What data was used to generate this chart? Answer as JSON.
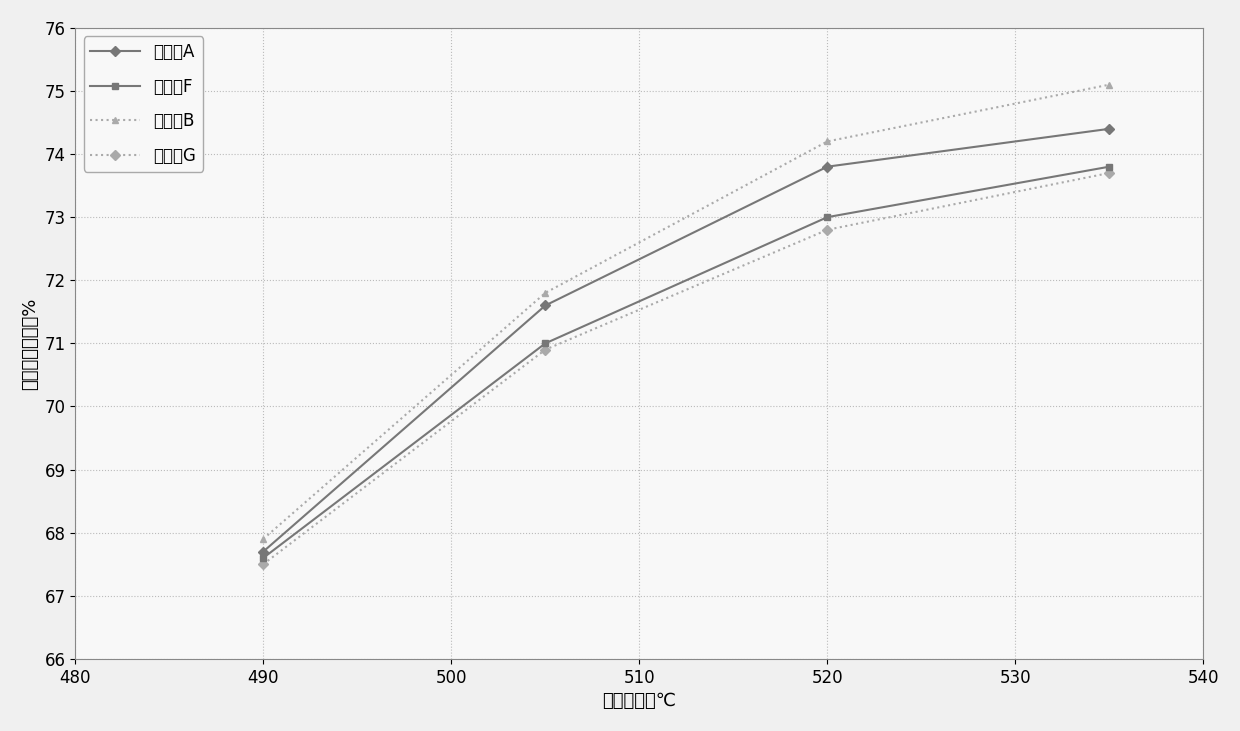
{
  "series": [
    {
      "label": "催化劑A",
      "x": [
        490,
        505,
        520,
        535
      ],
      "y": [
        67.7,
        71.6,
        73.8,
        74.4
      ],
      "color": "#777777",
      "linestyle": "-",
      "marker": "D",
      "markersize": 5,
      "linewidth": 1.5,
      "zorder": 3
    },
    {
      "label": "催化劑F",
      "x": [
        490,
        505,
        520,
        535
      ],
      "y": [
        67.6,
        71.0,
        73.0,
        73.8
      ],
      "color": "#777777",
      "linestyle": "-",
      "marker": "s",
      "markersize": 5,
      "linewidth": 1.5,
      "zorder": 2
    },
    {
      "label": "催化劑B",
      "x": [
        490,
        505,
        520,
        535
      ],
      "y": [
        67.9,
        71.8,
        74.2,
        75.1
      ],
      "color": "#aaaaaa",
      "linestyle": ":",
      "marker": "^",
      "markersize": 5,
      "linewidth": 1.5,
      "zorder": 4
    },
    {
      "label": "催化劑G",
      "x": [
        490,
        505,
        520,
        535
      ],
      "y": [
        67.5,
        70.9,
        72.8,
        73.7
      ],
      "color": "#aaaaaa",
      "linestyle": ":",
      "marker": "D",
      "markersize": 5,
      "linewidth": 1.5,
      "zorder": 1
    }
  ],
  "xlabel": "反应温度，℃",
  "ylabel": "芳烃产率，质量%",
  "xlim": [
    480,
    540
  ],
  "ylim": [
    66,
    76
  ],
  "xticks": [
    480,
    490,
    500,
    510,
    520,
    530,
    540
  ],
  "yticks": [
    66,
    67,
    68,
    69,
    70,
    71,
    72,
    73,
    74,
    75,
    76
  ],
  "background_color": "#f0f0f0",
  "plot_bg_color": "#f8f8f8",
  "grid_color": "#bbbbbb",
  "legend_fontsize": 12,
  "axis_fontsize": 13,
  "tick_fontsize": 12
}
